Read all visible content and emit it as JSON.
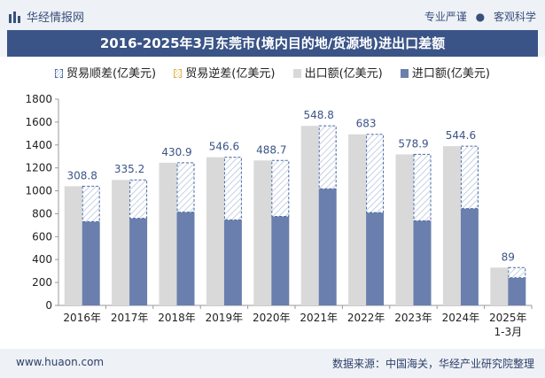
{
  "header": {
    "brand": "华经情报网",
    "tag_1": "专业严谨",
    "tag_separator": "●",
    "tag_2": "客观科学"
  },
  "chart_data": {
    "type": "bar",
    "title": "2016-2025年3月东莞市(境内目的地/货源地)进出口差额",
    "categories": [
      "2016年",
      "2017年",
      "2018年",
      "2019年",
      "2020年",
      "2021年",
      "2022年",
      "2023年",
      "2024年",
      "2025年"
    ],
    "category_sublabels": [
      "",
      "",
      "",
      "",
      "",
      "",
      "",
      "",
      "",
      "1-3月"
    ],
    "ylim": [
      0,
      1800
    ],
    "yticks": [
      0,
      200,
      400,
      600,
      800,
      1000,
      1200,
      1400,
      1600,
      1800
    ],
    "grid": false,
    "legend_position": "top",
    "series": [
      {
        "name": "贸易顺差(亿美元)",
        "values": [
          308.8,
          335.2,
          430.9,
          546.6,
          488.7,
          548.8,
          683,
          578.9,
          544.6,
          89
        ]
      },
      {
        "name": "贸易逆差(亿美元)",
        "values": [
          0,
          0,
          0,
          0,
          0,
          0,
          0,
          0,
          0,
          0
        ]
      },
      {
        "name": "出口额(亿美元)",
        "values": [
          1040,
          1095,
          1245,
          1293,
          1265,
          1567,
          1493,
          1318,
          1390,
          330
        ]
      },
      {
        "name": "进口额(亿美元)",
        "values": [
          731,
          760,
          814,
          746,
          776,
          1018,
          810,
          739,
          845,
          241
        ]
      }
    ],
    "data_labels": [
      "308.8",
      "335.2",
      "430.9",
      "546.6",
      "488.7",
      "548.8",
      "683",
      "578.9",
      "544.6",
      "89"
    ],
    "colors": {
      "export": "#d9d9d9",
      "import": "#6a7fad",
      "surplus_border": "#4b6aa6",
      "surplus_hatch": "#b8c6de",
      "deficit_border": "#d8b347",
      "label": "#3a5487"
    }
  },
  "footer": {
    "website": "www.huaon.com",
    "source": "数据来源：中国海关，华经产业研究院整理"
  }
}
